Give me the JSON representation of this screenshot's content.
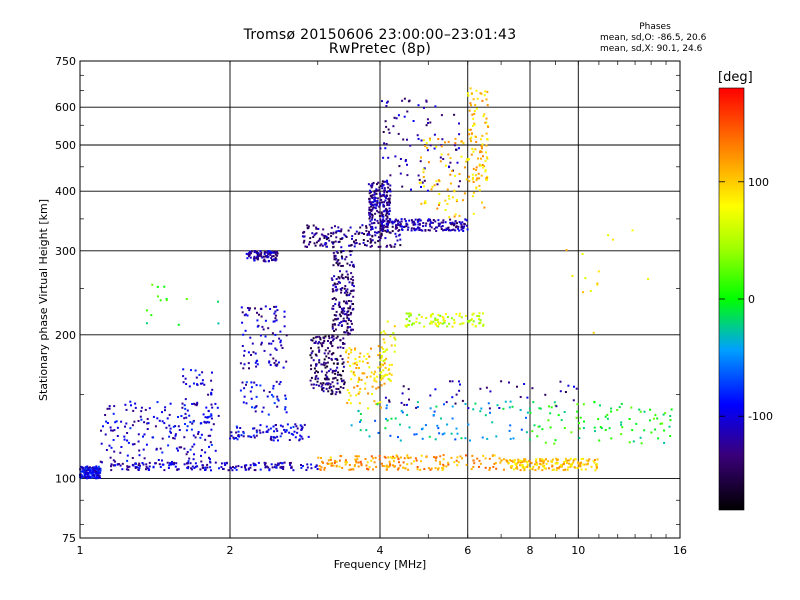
{
  "title": "Tromsø 20150606 23:00:00–23:01:43",
  "subtitle": "RwPretec (8p)",
  "stats": {
    "heading": "Phases",
    "line1": "mean, sd,O: -86.5, 20.6",
    "line2": "mean, sd,X: 90.1, 24.6"
  },
  "colorbar": {
    "label": "[deg]",
    "range": [
      -180,
      180
    ],
    "ticks": [
      {
        "v": 100,
        "label": "100"
      },
      {
        "v": 0,
        "label": "0"
      },
      {
        "v": -100,
        "label": "-100"
      }
    ]
  },
  "chart_data": {
    "type": "scatter",
    "title": "Tromsø 20150606 23:00:00–23:01:43",
    "subtitle": "RwPretec (8p)",
    "xlabel": "Frequency [MHz]",
    "ylabel": "Stationary phase Virtual Height [km]",
    "x_scale": "log",
    "y_scale": "log",
    "xlim": [
      1,
      16
    ],
    "ylim": [
      75,
      750
    ],
    "x_ticks": [
      1,
      2,
      4,
      6,
      8,
      10,
      16
    ],
    "y_ticks": [
      75,
      100,
      200,
      300,
      400,
      500,
      600,
      750
    ],
    "grid": true,
    "color_by": "phase [deg]",
    "clusters": [
      {
        "f": [
          1.0,
          1.1
        ],
        "h": [
          100,
          106
        ],
        "phase": -95,
        "density": "high"
      },
      {
        "f": [
          1.1,
          1.9
        ],
        "h": [
          108,
          145
        ],
        "phase": -105,
        "density": "high"
      },
      {
        "f": [
          1.15,
          3.0
        ],
        "h": [
          104,
          108
        ],
        "phase": -110,
        "density": "high"
      },
      {
        "f": [
          1.6,
          1.85
        ],
        "h": [
          130,
          170
        ],
        "phase": -100,
        "density": "low"
      },
      {
        "f": [
          2.0,
          2.9
        ],
        "h": [
          120,
          130
        ],
        "phase": -100,
        "density": "medium"
      },
      {
        "f": [
          2.1,
          2.6
        ],
        "h": [
          170,
          230
        ],
        "phase": -115,
        "density": "medium"
      },
      {
        "f": [
          2.1,
          2.6
        ],
        "h": [
          135,
          160
        ],
        "phase": -100,
        "density": "low"
      },
      {
        "f": [
          2.15,
          2.5
        ],
        "h": [
          285,
          300
        ],
        "phase": -120,
        "density": "medium"
      },
      {
        "f": [
          2.9,
          3.4
        ],
        "h": [
          150,
          200
        ],
        "phase": -140,
        "density": "high"
      },
      {
        "f": [
          3.2,
          3.55
        ],
        "h": [
          200,
          300
        ],
        "phase": -135,
        "density": "high"
      },
      {
        "f": [
          2.8,
          4.4
        ],
        "h": [
          305,
          340
        ],
        "phase": -130,
        "density": "high"
      },
      {
        "f": [
          4.0,
          6.0
        ],
        "h": [
          330,
          350
        ],
        "phase": -120,
        "density": "high"
      },
      {
        "f": [
          3.8,
          4.2
        ],
        "h": [
          340,
          420
        ],
        "phase": -125,
        "density": "high"
      },
      {
        "f": [
          4.0,
          5.8
        ],
        "h": [
          400,
          630
        ],
        "phase": -120,
        "density": "medium"
      },
      {
        "f": [
          4.8,
          6.5
        ],
        "h": [
          350,
          520
        ],
        "phase": 100,
        "density": "medium"
      },
      {
        "f": [
          6.0,
          6.6
        ],
        "h": [
          420,
          660
        ],
        "phase": 100,
        "density": "medium"
      },
      {
        "f": [
          3.4,
          4.1
        ],
        "h": [
          140,
          190
        ],
        "phase": 100,
        "density": "medium"
      },
      {
        "f": [
          4.0,
          4.3
        ],
        "h": [
          160,
          220
        ],
        "phase": 80,
        "density": "low"
      },
      {
        "f": [
          3.0,
          7.0
        ],
        "h": [
          104,
          112
        ],
        "phase": 120,
        "density": "high"
      },
      {
        "f": [
          7.0,
          11.0
        ],
        "h": [
          104,
          110
        ],
        "phase": 100,
        "density": "high"
      },
      {
        "f": [
          3.5,
          8.0
        ],
        "h": [
          120,
          145
        ],
        "phase": -40,
        "density": "medium"
      },
      {
        "f": [
          8.0,
          15.5
        ],
        "h": [
          118,
          145
        ],
        "phase": 0,
        "density": "medium"
      },
      {
        "f": [
          4.5,
          6.5
        ],
        "h": [
          208,
          222
        ],
        "phase": 60,
        "density": "medium"
      },
      {
        "f": [
          4.0,
          10.0
        ],
        "h": [
          140,
          160
        ],
        "phase": -120,
        "density": "low"
      },
      {
        "f": [
          1.3,
          2.0
        ],
        "h": [
          200,
          260
        ],
        "phase": 0,
        "density": "sparse"
      },
      {
        "f": [
          9.0,
          14.0
        ],
        "h": [
          200,
          360
        ],
        "phase": 90,
        "density": "sparse"
      }
    ]
  }
}
